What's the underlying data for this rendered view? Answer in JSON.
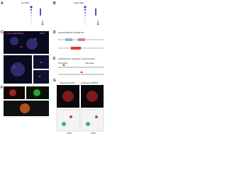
{
  "panels": [
    {
      "letter": "A",
      "title": "P1 SMG"
    },
    {
      "letter": "B",
      "title": "Adult SMG"
    },
    {
      "letter": "C",
      "title": "in situ hybridization",
      "stain": "DAPI"
    },
    {
      "letter": "D",
      "title": "Ascl1CreERT2/+;R26tdTom"
    },
    {
      "letter": "E",
      "title": "Labeling Ascl1+ population in pups and adult",
      "step1": "Tamoxifen",
      "step2": "Tdtomato"
    },
    {
      "letter": "F"
    },
    {
      "letter": "G",
      "left": "Labeled at P4/5",
      "right": "Labeled at P56/57",
      "axis": "TOM"
    }
  ]
}
